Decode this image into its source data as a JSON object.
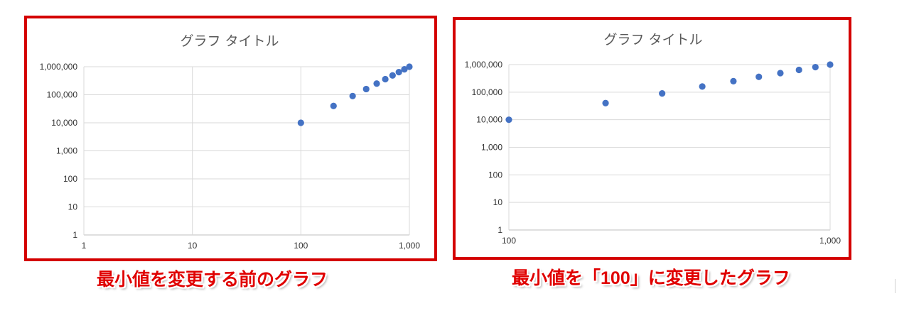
{
  "chart_data": [
    {
      "type": "scatter",
      "title": "グラフ タイトル",
      "x_scale": "log",
      "y_scale": "log",
      "xlim": [
        1,
        1000
      ],
      "ylim": [
        1,
        1000000
      ],
      "x_ticks": [
        1,
        10,
        100,
        1000
      ],
      "x_tick_labels": [
        "1",
        "10",
        "100",
        "1,000"
      ],
      "y_ticks": [
        1,
        10,
        100,
        1000,
        10000,
        100000,
        1000000
      ],
      "y_tick_labels": [
        "1",
        "10",
        "100",
        "1,000",
        "10,000",
        "100,000",
        "1,000,000"
      ],
      "grid": true,
      "marker_color": "#4472c4",
      "x": [
        100,
        200,
        300,
        400,
        500,
        600,
        700,
        800,
        900,
        1000
      ],
      "y": [
        10000,
        40000,
        90000,
        160000,
        250000,
        360000,
        490000,
        640000,
        810000,
        1000000
      ]
    },
    {
      "type": "scatter",
      "title": "グラフ タイトル",
      "x_scale": "log",
      "y_scale": "log",
      "xlim": [
        100,
        1000
      ],
      "ylim": [
        1,
        1000000
      ],
      "x_ticks": [
        100,
        1000
      ],
      "x_tick_labels": [
        "100",
        "1,000"
      ],
      "y_ticks": [
        1,
        10,
        100,
        1000,
        10000,
        100000,
        1000000
      ],
      "y_tick_labels": [
        "1",
        "10",
        "100",
        "1,000",
        "10,000",
        "100,000",
        "1,000,000"
      ],
      "grid": true,
      "marker_color": "#4472c4",
      "x": [
        100,
        200,
        300,
        400,
        500,
        600,
        700,
        800,
        900,
        1000
      ],
      "y": [
        10000,
        40000,
        90000,
        160000,
        250000,
        360000,
        490000,
        640000,
        810000,
        1000000
      ]
    }
  ],
  "captions": {
    "left": "最小値を変更する前のグラフ",
    "right_before": "最小値を「",
    "right_value": "100",
    "right_after": "」に変更したグラフ"
  },
  "colors": {
    "frame": "#d40000",
    "caption": "#e00000"
  }
}
